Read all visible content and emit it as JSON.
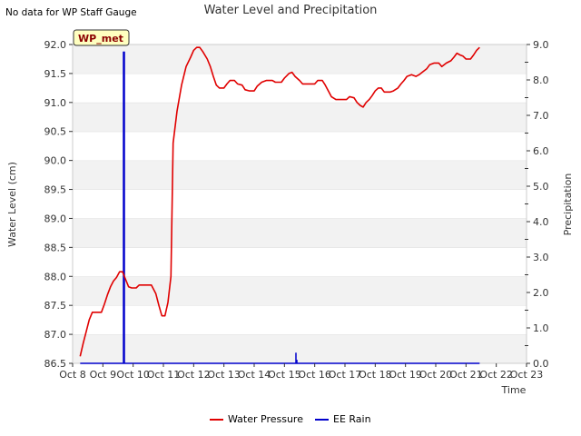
{
  "corner_note": "No data for WP Staff Gauge",
  "chart_data": {
    "type": "line",
    "title": "Water Level and Precipitation",
    "xlabel": "Time",
    "ylabel": "Water Level (cm)",
    "y2label": "Precipitation",
    "xlim": [
      0,
      15
    ],
    "ylim": [
      86.5,
      92.0
    ],
    "y2lim": [
      0.0,
      9.0
    ],
    "x_ticks": [
      0,
      1,
      2,
      3,
      4,
      5,
      6,
      7,
      8,
      9,
      10,
      11,
      12,
      13,
      14,
      15
    ],
    "x_tick_labels": [
      "Oct 8",
      "Oct 9",
      "Oct 10",
      "Oct 11",
      "Oct 12",
      "Oct 13",
      "Oct 14",
      "Oct 15",
      "Oct 16",
      "Oct 17",
      "Oct 18",
      "Oct 19",
      "Oct 20",
      "Oct 21",
      "Oct 22",
      "Oct 23"
    ],
    "y_ticks": [
      86.5,
      87.0,
      87.5,
      88.0,
      88.5,
      89.0,
      89.5,
      90.0,
      90.5,
      91.0,
      91.5,
      92.0
    ],
    "y_tick_labels": [
      "86.5",
      "87.0",
      "87.5",
      "88.0",
      "88.5",
      "89.0",
      "89.5",
      "90.0",
      "90.5",
      "91.0",
      "91.5",
      "92.0"
    ],
    "y2_ticks": [
      0,
      1,
      2,
      3,
      4,
      5,
      6,
      7,
      8,
      9
    ],
    "y2_tick_labels": [
      "0.0",
      "1.0",
      "2.0",
      "3.0",
      "4.0",
      "5.0",
      "6.0",
      "7.0",
      "8.0",
      "9.0"
    ],
    "grid": "horizontal alternating bands",
    "legend_position": "bottom-center",
    "badge": "WP_met",
    "colors": {
      "water": "#e00000",
      "rain": "#0000cc",
      "band": "#f2f2f2",
      "badge_bg": "#ffffc0",
      "badge_text": "#8b0000"
    },
    "series": [
      {
        "name": "Water Pressure",
        "axis": "left",
        "points": [
          [
            0.25,
            86.62
          ],
          [
            0.35,
            86.85
          ],
          [
            0.45,
            87.05
          ],
          [
            0.55,
            87.25
          ],
          [
            0.65,
            87.38
          ],
          [
            0.8,
            87.38
          ],
          [
            0.95,
            87.38
          ],
          [
            1.05,
            87.52
          ],
          [
            1.15,
            87.68
          ],
          [
            1.25,
            87.82
          ],
          [
            1.35,
            87.92
          ],
          [
            1.45,
            87.98
          ],
          [
            1.55,
            88.08
          ],
          [
            1.65,
            88.08
          ],
          [
            1.75,
            87.95
          ],
          [
            1.85,
            87.82
          ],
          [
            1.95,
            87.8
          ],
          [
            2.1,
            87.8
          ],
          [
            2.2,
            87.85
          ],
          [
            2.4,
            87.85
          ],
          [
            2.6,
            87.85
          ],
          [
            2.75,
            87.7
          ],
          [
            2.85,
            87.5
          ],
          [
            2.95,
            87.32
          ],
          [
            3.05,
            87.32
          ],
          [
            3.15,
            87.55
          ],
          [
            3.25,
            88.0
          ],
          [
            3.32,
            90.3
          ],
          [
            3.45,
            90.85
          ],
          [
            3.6,
            91.3
          ],
          [
            3.75,
            91.62
          ],
          [
            3.9,
            91.78
          ],
          [
            4.0,
            91.9
          ],
          [
            4.1,
            91.95
          ],
          [
            4.2,
            91.95
          ],
          [
            4.3,
            91.88
          ],
          [
            4.45,
            91.75
          ],
          [
            4.55,
            91.62
          ],
          [
            4.65,
            91.45
          ],
          [
            4.75,
            91.3
          ],
          [
            4.85,
            91.25
          ],
          [
            5.0,
            91.25
          ],
          [
            5.1,
            91.32
          ],
          [
            5.2,
            91.38
          ],
          [
            5.35,
            91.38
          ],
          [
            5.45,
            91.32
          ],
          [
            5.6,
            91.3
          ],
          [
            5.7,
            91.22
          ],
          [
            5.85,
            91.2
          ],
          [
            6.0,
            91.2
          ],
          [
            6.1,
            91.28
          ],
          [
            6.25,
            91.35
          ],
          [
            6.4,
            91.38
          ],
          [
            6.6,
            91.38
          ],
          [
            6.7,
            91.35
          ],
          [
            6.9,
            91.35
          ],
          [
            7.0,
            91.42
          ],
          [
            7.15,
            91.5
          ],
          [
            7.25,
            91.52
          ],
          [
            7.35,
            91.45
          ],
          [
            7.5,
            91.38
          ],
          [
            7.6,
            91.32
          ],
          [
            7.8,
            91.32
          ],
          [
            8.0,
            91.32
          ],
          [
            8.1,
            91.38
          ],
          [
            8.25,
            91.38
          ],
          [
            8.35,
            91.3
          ],
          [
            8.45,
            91.2
          ],
          [
            8.55,
            91.1
          ],
          [
            8.7,
            91.05
          ],
          [
            8.9,
            91.05
          ],
          [
            9.05,
            91.05
          ],
          [
            9.15,
            91.1
          ],
          [
            9.3,
            91.08
          ],
          [
            9.4,
            91.0
          ],
          [
            9.5,
            90.95
          ],
          [
            9.6,
            90.92
          ],
          [
            9.7,
            91.0
          ],
          [
            9.8,
            91.05
          ],
          [
            9.9,
            91.12
          ],
          [
            10.0,
            91.2
          ],
          [
            10.1,
            91.25
          ],
          [
            10.2,
            91.25
          ],
          [
            10.3,
            91.18
          ],
          [
            10.5,
            91.18
          ],
          [
            10.6,
            91.2
          ],
          [
            10.75,
            91.25
          ],
          [
            10.85,
            91.32
          ],
          [
            10.95,
            91.38
          ],
          [
            11.05,
            91.45
          ],
          [
            11.2,
            91.48
          ],
          [
            11.35,
            91.45
          ],
          [
            11.45,
            91.48
          ],
          [
            11.55,
            91.52
          ],
          [
            11.7,
            91.58
          ],
          [
            11.8,
            91.65
          ],
          [
            11.95,
            91.68
          ],
          [
            12.1,
            91.68
          ],
          [
            12.2,
            91.62
          ],
          [
            12.35,
            91.68
          ],
          [
            12.5,
            91.72
          ],
          [
            12.6,
            91.78
          ],
          [
            12.7,
            91.85
          ],
          [
            12.8,
            91.82
          ],
          [
            12.9,
            91.8
          ],
          [
            13.0,
            91.75
          ],
          [
            13.15,
            91.75
          ],
          [
            13.25,
            91.82
          ],
          [
            13.35,
            91.9
          ],
          [
            13.45,
            91.95
          ]
        ]
      },
      {
        "name": "EE Rain",
        "axis": "right",
        "style": "bar",
        "baseline": [
          [
            0.25,
            0
          ],
          [
            13.45,
            0
          ]
        ],
        "spikes": [
          [
            1.68,
            8.8
          ],
          [
            1.71,
            8.8
          ],
          [
            7.38,
            0.3
          ],
          [
            7.41,
            0.1
          ]
        ]
      }
    ]
  }
}
